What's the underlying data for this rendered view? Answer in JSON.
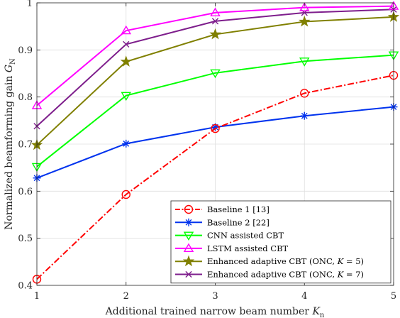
{
  "chart_data": {
    "type": "line",
    "x": [
      1,
      2,
      3,
      4,
      5
    ],
    "xlim": [
      1,
      5
    ],
    "ylim": [
      0.4,
      1.0
    ],
    "xticks": [
      "1",
      "2",
      "3",
      "4",
      "5"
    ],
    "yticks": [
      "0.4",
      "0.5",
      "0.6",
      "0.7",
      "0.8",
      "0.9",
      "1"
    ],
    "xlabel": "Additional trained narrow beam number K_n",
    "ylabel": "Normalized beamforming gain G_N",
    "grid": true,
    "legend_position": "bottom-right",
    "series": [
      {
        "name": "Baseline 1 [13]",
        "values": [
          0.413,
          0.593,
          0.733,
          0.808,
          0.846
        ],
        "color": "#ff0000",
        "marker": "circle",
        "dash": "dash-dot"
      },
      {
        "name": "Baseline 2 [22]",
        "values": [
          0.628,
          0.701,
          0.736,
          0.76,
          0.779
        ],
        "color": "#0033ee",
        "marker": "asterisk",
        "dash": "solid"
      },
      {
        "name": "CNN assisted CBT",
        "values": [
          0.652,
          0.803,
          0.851,
          0.876,
          0.889
        ],
        "color": "#00ff00",
        "marker": "triangle-down",
        "dash": "solid"
      },
      {
        "name": "LSTM assisted CBT",
        "values": [
          0.782,
          0.941,
          0.979,
          0.99,
          0.993
        ],
        "color": "#ff00ff",
        "marker": "triangle-up",
        "dash": "solid"
      },
      {
        "name": "Enhanced adaptive CBT (ONC, K = 5)",
        "values": [
          0.698,
          0.875,
          0.933,
          0.96,
          0.97
        ],
        "color": "#808000",
        "marker": "star",
        "dash": "solid"
      },
      {
        "name": "Enhanced adaptive CBT (ONC, K = 7)",
        "values": [
          0.738,
          0.912,
          0.961,
          0.979,
          0.986
        ],
        "color": "#7e1e8c",
        "marker": "x",
        "dash": "solid"
      }
    ]
  }
}
